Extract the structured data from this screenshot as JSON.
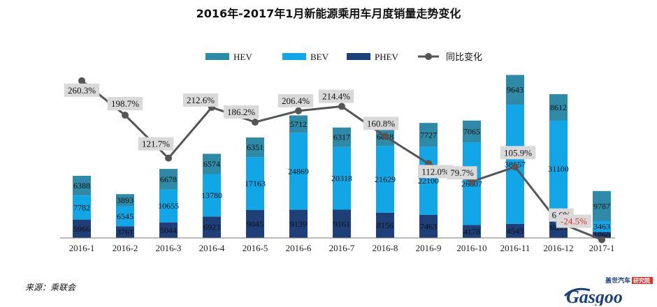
{
  "chart_data": {
    "type": "bar",
    "stacked": true,
    "title": "2016年-2017年1月新能源乘用车月度销量走势变化",
    "categories": [
      "2016-1",
      "2016-2",
      "2016-3",
      "2016-4",
      "2016-5",
      "2016-6",
      "2016-7",
      "2016-8",
      "2016-9",
      "2016-10",
      "2016-11",
      "2016-12",
      "2017-1"
    ],
    "series": [
      {
        "name": "PHEV",
        "color": "#1f3f78",
        "values": [
          5966,
          3761,
          5044,
          6923,
          9045,
          9139,
          9161,
          8156,
          7463,
          4178,
          4543,
          6899,
          1960
        ]
      },
      {
        "name": "BEV",
        "color": "#12a6e6",
        "values": [
          7782,
          6545,
          10655,
          13780,
          17163,
          24869,
          20318,
          21629,
          22100,
          26807,
          38657,
          31100,
          3463
        ]
      },
      {
        "name": "HEV",
        "color": "#2e8aa6",
        "values": [
          6388,
          3893,
          6678,
          6574,
          6351,
          5712,
          6317,
          6028,
          7727,
          7065,
          9643,
          8612,
          9787
        ]
      }
    ],
    "line_series": {
      "name": "同比变化",
      "color": "#555555",
      "values": [
        260.3,
        198.7,
        121.7,
        212.6,
        186.2,
        206.4,
        214.4,
        160.8,
        112.0,
        79.7,
        105.9,
        6.6,
        -24.5
      ],
      "labels": [
        "260.3%",
        "198.7%",
        "121.7%",
        "212.6%",
        "186.2%",
        "206.4%",
        "214.4%",
        "160.8%",
        "112.0%",
        "79.7%",
        "105.9%",
        "6.6%",
        "-24.5%"
      ],
      "highlight_color": "#e0302a"
    },
    "legend_order": [
      "HEV",
      "BEV",
      "PHEV",
      "同比变化"
    ],
    "legend_position": "top-center",
    "grid": false
  },
  "source": "来源：乘联会",
  "logo": {
    "text": "Gasgoo",
    "subtitle": "盖世汽车",
    "badge": "研究院"
  }
}
